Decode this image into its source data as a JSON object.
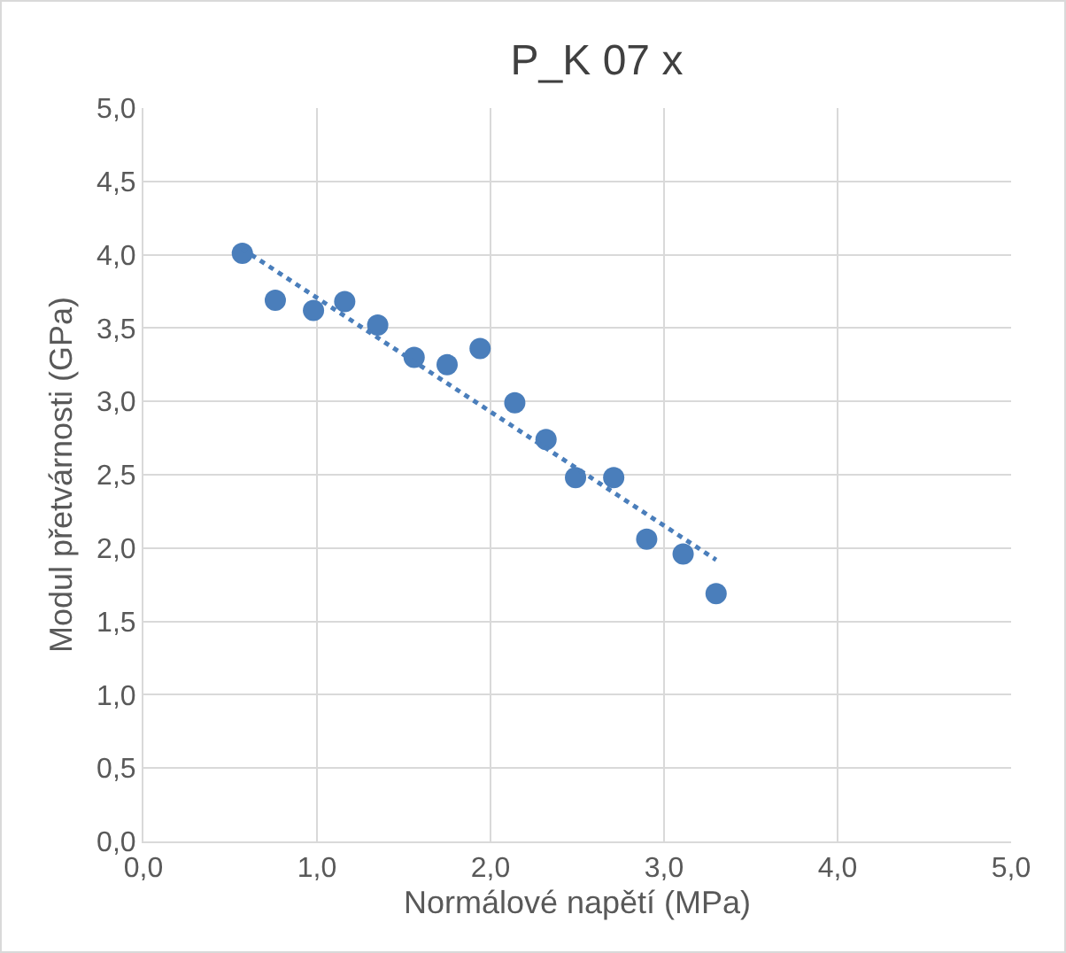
{
  "chart_data": {
    "type": "scatter",
    "title": "P_K 07 x",
    "xlabel": "Normálové napětí (MPa)",
    "ylabel": "Modul přetvárnosti (GPa)",
    "x": [
      0.57,
      0.76,
      0.98,
      1.16,
      1.35,
      1.56,
      1.75,
      1.94,
      2.14,
      2.32,
      2.49,
      2.71,
      2.9,
      3.11,
      3.3
    ],
    "series": [
      {
        "color": "#4a7ebb",
        "marker": "circle",
        "values": [
          4.01,
          3.69,
          3.62,
          3.68,
          3.52,
          3.3,
          3.25,
          3.36,
          2.99,
          2.74,
          2.48,
          2.48,
          2.06,
          1.96,
          1.69
        ]
      },
      {
        "type": "line",
        "color": "#4a7ebb",
        "marker": "none",
        "line_style": "dotted",
        "x": [
          0.57,
          3.3
        ],
        "values": [
          4.04,
          1.92
        ]
      }
    ],
    "xlim": [
      0,
      5
    ],
    "ylim": [
      0,
      5
    ],
    "xticks": [
      {
        "value": 0,
        "label": "0,0"
      },
      {
        "value": 1,
        "label": "1,0"
      },
      {
        "value": 2,
        "label": "2,0"
      },
      {
        "value": 3,
        "label": "3,0"
      },
      {
        "value": 4,
        "label": "4,0"
      },
      {
        "value": 5,
        "label": "5,0"
      }
    ],
    "yticks": [
      {
        "value": 0,
        "label": "0,0"
      },
      {
        "value": 0.5,
        "label": "0,5"
      },
      {
        "value": 1,
        "label": "1,0"
      },
      {
        "value": 1.5,
        "label": "1,5"
      },
      {
        "value": 2,
        "label": "2,0"
      },
      {
        "value": 2.5,
        "label": "2,5"
      },
      {
        "value": 3,
        "label": "3,0"
      },
      {
        "value": 3.5,
        "label": "3,5"
      },
      {
        "value": 4,
        "label": "4,0"
      },
      {
        "value": 4.5,
        "label": "4,5"
      },
      {
        "value": 5,
        "label": "5,0"
      }
    ],
    "grid": true
  }
}
